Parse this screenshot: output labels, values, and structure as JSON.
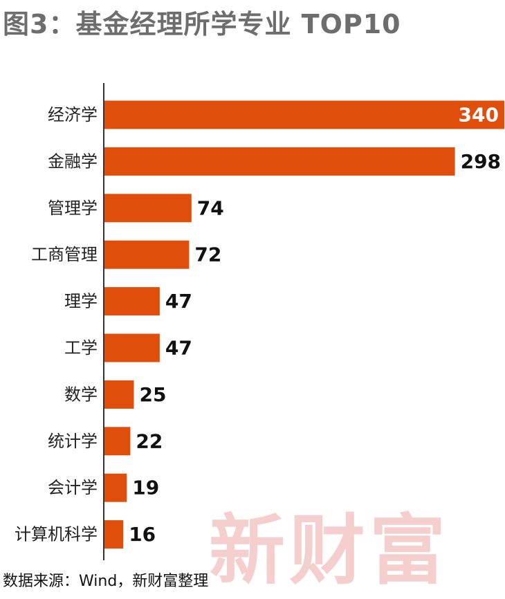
{
  "title": "图3：基金经理所学专业 TOP10",
  "source": "数据来源：Wind，新财富整理",
  "watermark": "新财富",
  "colors": {
    "bar": "#e04e0b",
    "axis": "#333333",
    "label_dark": "#111111",
    "label_inside": "#ffffff",
    "watermark": "#f4c6c6"
  },
  "chart_data": {
    "type": "bar",
    "orientation": "horizontal",
    "categories": [
      "经济学",
      "金融学",
      "管理学",
      "工商管理",
      "理学",
      "工学",
      "数学",
      "统计学",
      "会计学",
      "计算机科学"
    ],
    "values": [
      340,
      298,
      74,
      72,
      47,
      47,
      25,
      22,
      19,
      16
    ],
    "xlim": [
      0,
      340
    ],
    "grid": false,
    "legend": "none"
  }
}
